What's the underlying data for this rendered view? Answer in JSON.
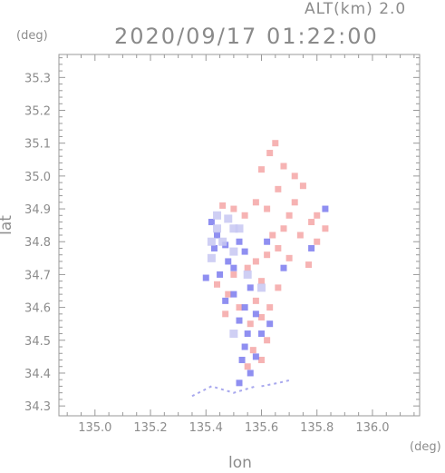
{
  "header": {
    "altitude": "ALT(km) 2.0",
    "datetime": "2020/09/17 01:22:00"
  },
  "axes": {
    "xlabel": "lon",
    "ylabel": "lat",
    "xunit": "(deg)",
    "yunit": "(deg)"
  },
  "chart_data": {
    "type": "scatter",
    "title": "2020/09/17 01:22:00",
    "subtitle": "ALT(km) 2.0",
    "xlabel": "lon",
    "ylabel": "lat",
    "xlim": [
      134.87,
      136.17
    ],
    "ylim": [
      34.27,
      35.37
    ],
    "xticks": [
      135.0,
      135.2,
      135.4,
      135.6,
      135.8,
      136.0
    ],
    "xtick_labels": [
      "135.0",
      "135.2",
      "135.4",
      "135.6",
      "135.8",
      "136.0"
    ],
    "yticks": [
      34.3,
      34.4,
      34.5,
      34.6,
      34.7,
      34.8,
      34.9,
      35.0,
      35.1,
      35.2,
      35.3
    ],
    "ytick_labels": [
      "34.3",
      "34.4",
      "34.5",
      "34.6",
      "34.7",
      "34.8",
      "34.9",
      "35.0",
      "35.1",
      "35.2",
      "35.3"
    ],
    "grid": false,
    "colors": {
      "positive": "#f08080",
      "negative": "#6f6ff0",
      "weak_positive": "#f7c4c4",
      "weak_negative": "#c3c3f3"
    },
    "series": [
      {
        "color": "#f4a6a6",
        "points": [
          [
            135.65,
            35.1
          ],
          [
            135.63,
            35.07
          ],
          [
            135.68,
            35.03
          ],
          [
            135.72,
            35.0
          ],
          [
            135.6,
            35.02
          ],
          [
            135.75,
            34.97
          ],
          [
            135.66,
            34.96
          ],
          [
            135.58,
            34.92
          ],
          [
            135.62,
            34.9
          ],
          [
            135.7,
            34.88
          ],
          [
            135.78,
            34.86
          ],
          [
            135.54,
            34.88
          ],
          [
            135.5,
            34.9
          ],
          [
            135.46,
            34.91
          ],
          [
            135.74,
            34.82
          ],
          [
            135.8,
            34.8
          ],
          [
            135.66,
            34.78
          ],
          [
            135.62,
            34.76
          ],
          [
            135.58,
            34.74
          ],
          [
            135.7,
            34.75
          ],
          [
            135.77,
            34.73
          ],
          [
            135.55,
            34.72
          ],
          [
            135.5,
            34.7
          ],
          [
            135.6,
            34.68
          ],
          [
            135.66,
            34.66
          ],
          [
            135.44,
            34.67
          ],
          [
            135.58,
            34.62
          ],
          [
            135.52,
            34.6
          ],
          [
            135.6,
            34.57
          ],
          [
            135.56,
            34.55
          ],
          [
            135.62,
            34.5
          ],
          [
            135.57,
            34.47
          ],
          [
            135.6,
            34.44
          ],
          [
            135.55,
            34.42
          ],
          [
            135.83,
            34.84
          ],
          [
            135.8,
            34.88
          ],
          [
            135.72,
            34.92
          ],
          [
            135.68,
            34.84
          ],
          [
            135.64,
            34.82
          ],
          [
            135.48,
            34.64
          ],
          [
            135.47,
            34.58
          ],
          [
            135.63,
            34.6
          ]
        ]
      },
      {
        "color": "#7b7bef",
        "points": [
          [
            135.42,
            34.86
          ],
          [
            135.44,
            34.82
          ],
          [
            135.47,
            34.79
          ],
          [
            135.43,
            34.78
          ],
          [
            135.48,
            34.74
          ],
          [
            135.52,
            34.8
          ],
          [
            135.54,
            34.77
          ],
          [
            135.5,
            34.72
          ],
          [
            135.45,
            34.7
          ],
          [
            135.4,
            34.69
          ],
          [
            135.56,
            34.66
          ],
          [
            135.5,
            34.64
          ],
          [
            135.54,
            34.6
          ],
          [
            135.58,
            34.58
          ],
          [
            135.52,
            34.56
          ],
          [
            135.55,
            34.52
          ],
          [
            135.6,
            34.52
          ],
          [
            135.54,
            34.48
          ],
          [
            135.58,
            34.45
          ],
          [
            135.53,
            34.44
          ],
          [
            135.56,
            34.4
          ],
          [
            135.52,
            34.37
          ],
          [
            135.83,
            34.9
          ],
          [
            135.78,
            34.78
          ],
          [
            135.68,
            34.72
          ],
          [
            135.62,
            34.8
          ],
          [
            135.47,
            34.62
          ],
          [
            135.63,
            34.55
          ]
        ]
      },
      {
        "color": "#c7c7f2",
        "points": [
          [
            135.48,
            34.87
          ],
          [
            135.44,
            34.84
          ],
          [
            135.46,
            34.8
          ],
          [
            135.5,
            34.84
          ],
          [
            135.42,
            34.75
          ],
          [
            135.52,
            34.84
          ],
          [
            135.44,
            34.88
          ],
          [
            135.42,
            34.8
          ],
          [
            135.5,
            34.77
          ],
          [
            135.55,
            34.7
          ],
          [
            135.6,
            34.66
          ],
          [
            135.5,
            34.52
          ]
        ]
      }
    ],
    "streaks": [
      [
        [
          135.35,
          34.33
        ],
        [
          135.42,
          34.36
        ],
        [
          135.5,
          34.34
        ],
        [
          135.58,
          34.36
        ]
      ],
      [
        [
          135.6,
          34.36
        ],
        [
          135.66,
          34.37
        ],
        [
          135.71,
          34.38
        ]
      ]
    ]
  }
}
